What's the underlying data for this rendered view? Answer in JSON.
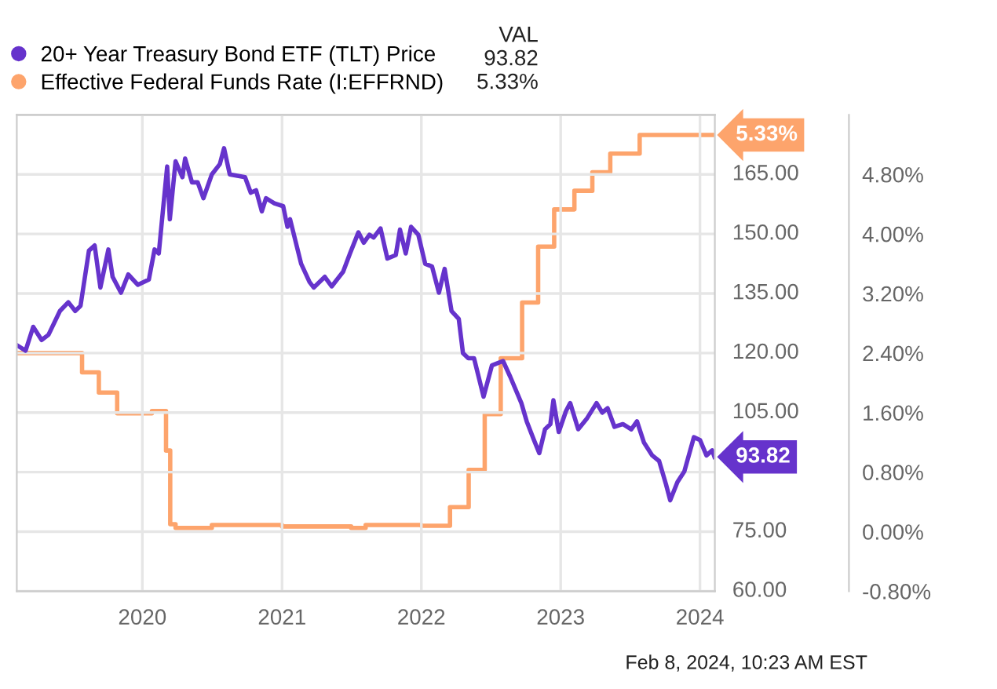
{
  "chart_data": {
    "type": "line",
    "xlim": [
      "2019-02-06",
      "2024-02-09"
    ],
    "xticks": [
      "2020",
      "2021",
      "2022",
      "2023",
      "2024"
    ],
    "ylim": [
      60,
      180
    ],
    "yticks": [
      {
        "value": 60,
        "label": "60.00"
      },
      {
        "value": 75,
        "label": "75.00"
      },
      {
        "value": 90,
        "label": null
      },
      {
        "value": 105,
        "label": "105.00"
      },
      {
        "value": 120,
        "label": "120.00"
      },
      {
        "value": 135,
        "label": "135.00"
      },
      {
        "value": 150,
        "label": "150.00"
      },
      {
        "value": 165,
        "label": "165.00"
      }
    ],
    "y2lim": [
      -0.8,
      5.6
    ],
    "y2ticks": [
      {
        "value": -0.8,
        "label": "-0.80%"
      },
      {
        "value": 0,
        "label": "0.00%"
      },
      {
        "value": 0.8,
        "label": "0.80%"
      },
      {
        "value": 1.6,
        "label": "1.60%"
      },
      {
        "value": 2.4,
        "label": "2.40%"
      },
      {
        "value": 3.2,
        "label": "3.20%"
      },
      {
        "value": 4.0,
        "label": "4.00%"
      },
      {
        "value": 4.8,
        "label": "4.80%"
      }
    ],
    "grid": true,
    "legend": "top left",
    "legend_title": "VAL",
    "annotations": [
      "Feb 8, 2024, 10:23 AM EST"
    ],
    "series": [
      {
        "name": "20+ Year Treasury Bond ETF (TLT) Price",
        "color": "#6633cc",
        "x": [
          "2019-02-06",
          "2019-03-01",
          "2019-03-21",
          "2019-04-12",
          "2019-04-30",
          "2019-05-30",
          "2019-06-21",
          "2019-07-09",
          "2019-07-23",
          "2019-08-14",
          "2019-08-29",
          "2019-09-13",
          "2019-10-04",
          "2019-10-15",
          "2019-11-06",
          "2019-11-25",
          "2019-12-20",
          "2020-01-18",
          "2020-02-02",
          "2020-02-13",
          "2020-03-06",
          "2020-03-13",
          "2020-03-28",
          "2020-04-15",
          "2020-04-22",
          "2020-05-10",
          "2020-05-25",
          "2020-06-09",
          "2020-07-01",
          "2020-07-22",
          "2020-08-02",
          "2020-08-17",
          "2020-09-26",
          "2020-10-11",
          "2020-10-25",
          "2020-11-09",
          "2020-11-20",
          "2020-12-12",
          "2021-01-04",
          "2021-01-15",
          "2021-01-22",
          "2021-02-20",
          "2021-03-14",
          "2021-03-25",
          "2021-04-23",
          "2021-05-11",
          "2021-06-10",
          "2021-06-28",
          "2021-07-20",
          "2021-08-03",
          "2021-08-18",
          "2021-08-29",
          "2021-09-16",
          "2021-10-04",
          "2021-10-26",
          "2021-11-06",
          "2021-11-21",
          "2021-12-05",
          "2021-12-24",
          "2022-01-11",
          "2022-01-29",
          "2022-02-16",
          "2022-03-03",
          "2022-03-21",
          "2022-04-09",
          "2022-04-20",
          "2022-05-04",
          "2022-05-19",
          "2022-06-13",
          "2022-07-05",
          "2022-08-03",
          "2022-08-22",
          "2022-09-20",
          "2022-10-04",
          "2022-10-23",
          "2022-11-06",
          "2022-11-21",
          "2022-12-05",
          "2022-12-13",
          "2022-12-27",
          "2023-01-15",
          "2023-01-26",
          "2023-02-16",
          "2023-03-10",
          "2023-04-05",
          "2023-04-20",
          "2023-05-04",
          "2023-05-22",
          "2023-06-13",
          "2023-07-05",
          "2023-07-20",
          "2023-08-07",
          "2023-08-29",
          "2023-09-16",
          "2023-10-04",
          "2023-10-15",
          "2023-11-03",
          "2023-11-21",
          "2023-12-16",
          "2024-01-01",
          "2024-01-18",
          "2024-02-02",
          "2024-02-08"
        ],
        "values": [
          122.0,
          120.6,
          126.6,
          123.3,
          124.6,
          130.6,
          132.8,
          130.6,
          131.9,
          145.8,
          147.1,
          136.5,
          146.1,
          139.2,
          135.2,
          139.8,
          137.2,
          138.5,
          146.1,
          145.1,
          167.0,
          153.7,
          168.3,
          164.3,
          169.0,
          163.0,
          163.0,
          159.0,
          165.0,
          167.6,
          171.6,
          165.0,
          164.3,
          160.4,
          161.0,
          155.7,
          159.0,
          157.7,
          157.0,
          151.8,
          153.7,
          142.5,
          137.9,
          136.5,
          139.2,
          136.8,
          140.5,
          145.1,
          150.4,
          147.8,
          149.8,
          149.1,
          151.4,
          143.8,
          144.7,
          151.1,
          145.1,
          151.8,
          149.8,
          142.5,
          141.8,
          135.2,
          141.2,
          130.6,
          128.6,
          120.0,
          118.7,
          118.7,
          109.0,
          116.9,
          118.0,
          114.0,
          107.4,
          102.8,
          98.1,
          94.8,
          100.8,
          102.1,
          108.1,
          100.1,
          105.4,
          107.4,
          100.8,
          103.4,
          107.4,
          105.0,
          106.1,
          101.4,
          102.1,
          100.8,
          102.8,
          97.5,
          94.2,
          92.8,
          86.9,
          82.9,
          87.5,
          90.2,
          98.8,
          98.1,
          94.2,
          95.5,
          93.82
        ],
        "value_labels": [
          null,
          null,
          null,
          null,
          null,
          null,
          null,
          null,
          null,
          null,
          null,
          null,
          null,
          null,
          null,
          null,
          null,
          null,
          null,
          null,
          null,
          null,
          null,
          null,
          null,
          null,
          null,
          null,
          null,
          null,
          null,
          null,
          null,
          null,
          null,
          null,
          null,
          null,
          null,
          null,
          null,
          null,
          null,
          null,
          null,
          null,
          null,
          null,
          null,
          null,
          null,
          null,
          null,
          null,
          null,
          null,
          null,
          null,
          null,
          null,
          null,
          null,
          null,
          null,
          null,
          null,
          null,
          null,
          null,
          null,
          null,
          null,
          null,
          null,
          null,
          null,
          null,
          null,
          null,
          null,
          null,
          null,
          null,
          null,
          null,
          null,
          null,
          null,
          null,
          null,
          null,
          null,
          null,
          null,
          null,
          null,
          null,
          null,
          null,
          null,
          null,
          null,
          "93.82"
        ]
      },
      {
        "name": "Effective Federal Funds Rate (I:EFFRND)",
        "color": "#fda46c",
        "type": "step",
        "axis": "y2",
        "x": [
          "2019-02-06",
          "2019-07-27",
          "2019-09-09",
          "2019-10-27",
          "2020-01-26",
          "2020-03-03",
          "2020-03-14",
          "2020-03-28",
          "2020-07-01",
          "2021-01-01",
          "2021-07-01",
          "2021-08-08",
          "2022-01-01",
          "2022-03-17",
          "2022-05-05",
          "2022-06-16",
          "2022-07-28",
          "2022-09-22",
          "2022-11-03",
          "2022-12-15",
          "2023-02-06",
          "2023-03-25",
          "2023-05-11",
          "2023-07-27",
          "2024-02-08"
        ],
        "values": [
          2.4,
          2.14,
          1.87,
          1.59,
          1.62,
          1.09,
          0.1,
          0.05,
          0.09,
          0.07,
          0.05,
          0.09,
          0.08,
          0.33,
          0.83,
          1.58,
          2.33,
          3.08,
          3.83,
          4.33,
          4.58,
          4.83,
          5.08,
          5.33,
          5.33
        ],
        "value_labels": [
          null,
          null,
          null,
          null,
          null,
          null,
          null,
          null,
          null,
          null,
          null,
          null,
          null,
          null,
          null,
          null,
          null,
          null,
          null,
          null,
          null,
          null,
          null,
          null,
          "5.33%"
        ]
      }
    ]
  }
}
